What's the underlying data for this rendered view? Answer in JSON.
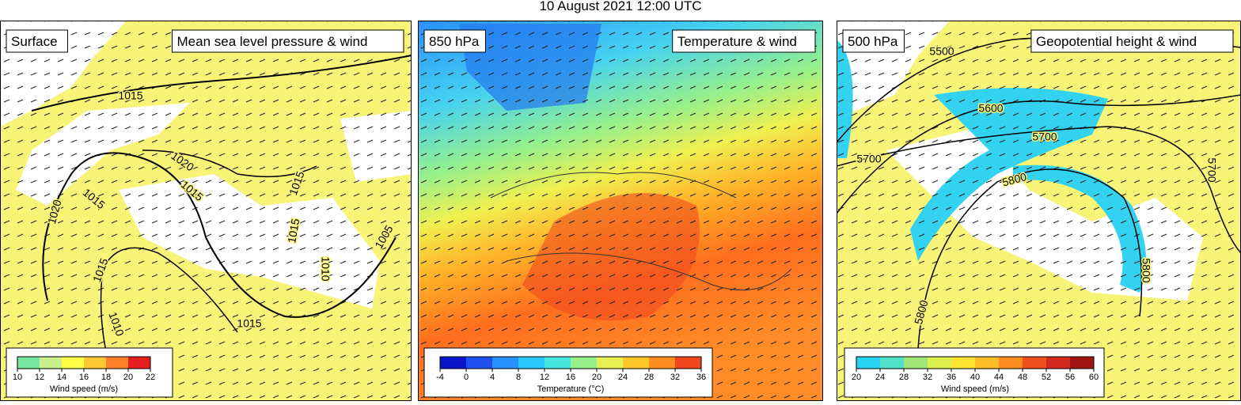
{
  "title": "10 August 2021 12:00 UTC",
  "panels": [
    {
      "level": "Surface",
      "field": "Mean sea level pressure & wind",
      "colorbar": {
        "label": "Wind speed (m/s)",
        "ticks": [
          10,
          12,
          14,
          16,
          18,
          20,
          22
        ],
        "colors": [
          "#78e6a0",
          "#c8f08c",
          "#ffff46",
          "#ffc832",
          "#ff8228",
          "#e61e1e"
        ]
      },
      "contour_labels": [
        "1015",
        "1020",
        "1015",
        "1020",
        "1015",
        "1015",
        "1015",
        "1010",
        "1015",
        "1010",
        "1005",
        "1015"
      ]
    },
    {
      "level": "850 hPa",
      "field": "Temperature & wind",
      "colorbar": {
        "label": "Temperature (°C)",
        "ticks": [
          -4,
          0,
          4,
          8,
          12,
          16,
          20,
          24,
          28,
          32,
          36
        ],
        "colors": [
          "#0a14c8",
          "#1e50f0",
          "#2890ff",
          "#28c8ff",
          "#46e6dc",
          "#96f08c",
          "#e6f050",
          "#ffc828",
          "#ff8c1e",
          "#f0461e"
        ]
      },
      "contour_labels": []
    },
    {
      "level": "500 hPa",
      "field": "Geopotential height & wind",
      "colorbar": {
        "label": "Wind speed (m/s)",
        "ticks": [
          20,
          24,
          28,
          32,
          36,
          40,
          44,
          48,
          52,
          56,
          60
        ],
        "colors": [
          "#28d2f0",
          "#50e0c8",
          "#a0e678",
          "#dcf050",
          "#ffe632",
          "#ffbe28",
          "#ff8c1e",
          "#f0501e",
          "#d2281e",
          "#a01414"
        ]
      },
      "contour_labels": [
        "5500",
        "5600",
        "5700",
        "5700",
        "5800",
        "5700",
        "5800",
        "5800"
      ]
    }
  ]
}
